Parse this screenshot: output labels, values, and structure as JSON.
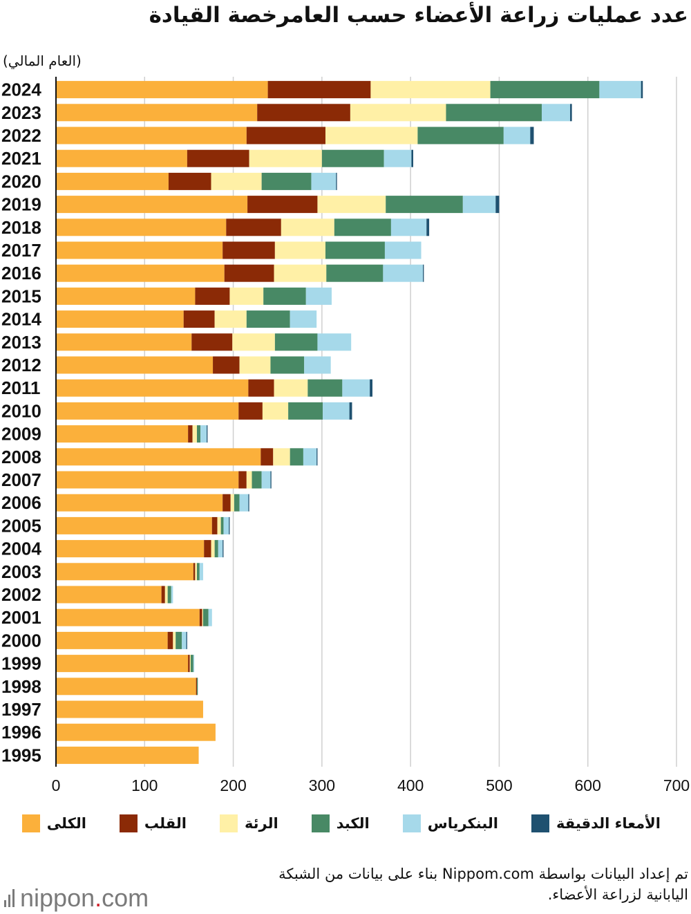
{
  "chart_data": {
    "type": "bar",
    "orientation": "horizontal",
    "stacked": true,
    "title": "عدد عمليات زراعة الأعضاء حسب العامرخصة القيادة",
    "unit_label": "(العام المالي)",
    "categories": [
      "2024",
      "2023",
      "2022",
      "2021",
      "2020",
      "2019",
      "2018",
      "2017",
      "2016",
      "2015",
      "2014",
      "2013",
      "2012",
      "2011",
      "2010",
      "2009",
      "2008",
      "2007",
      "2006",
      "2005",
      "2004",
      "2003",
      "2002",
      "2001",
      "2000",
      "1999",
      "1998",
      "1997",
      "1996",
      "1995"
    ],
    "series": [
      {
        "name": "الكلى",
        "color": "#fbb03b",
        "values": [
          239,
          227,
          215,
          148,
          127,
          216,
          192,
          188,
          190,
          157,
          144,
          153,
          177,
          217,
          206,
          149,
          231,
          206,
          188,
          176,
          167,
          155,
          119,
          162,
          126,
          149,
          158,
          166,
          180,
          161
        ]
      },
      {
        "name": "القلب",
        "color": "#8b2a06",
        "values": [
          116,
          105,
          89,
          70,
          48,
          79,
          62,
          59,
          56,
          39,
          35,
          46,
          30,
          29,
          27,
          5,
          14,
          9,
          9,
          6,
          8,
          2,
          4,
          3,
          6,
          2,
          1,
          0,
          0,
          0
        ]
      },
      {
        "name": "الرئة",
        "color": "#fff0a6",
        "values": [
          135,
          108,
          104,
          82,
          57,
          77,
          60,
          57,
          59,
          38,
          36,
          48,
          35,
          38,
          29,
          5,
          19,
          6,
          4,
          4,
          4,
          2,
          3,
          1,
          3,
          1,
          0,
          0,
          0,
          0
        ]
      },
      {
        "name": "الكبد",
        "color": "#488965",
        "values": [
          123,
          108,
          97,
          70,
          56,
          87,
          64,
          67,
          64,
          48,
          49,
          48,
          38,
          39,
          39,
          4,
          15,
          11,
          6,
          3,
          4,
          3,
          4,
          6,
          7,
          3,
          1,
          0,
          0,
          0
        ]
      },
      {
        "name": "البنكرياس",
        "color": "#a6d9ea",
        "values": [
          47,
          32,
          30,
          31,
          28,
          37,
          40,
          41,
          45,
          29,
          30,
          38,
          30,
          31,
          30,
          7,
          15,
          10,
          10,
          6,
          5,
          4,
          2,
          4,
          5,
          1,
          0,
          0,
          0,
          0
        ]
      },
      {
        "name": "الأمعاء الدقيقة",
        "color": "#1f5170",
        "values": [
          2,
          2,
          4,
          2,
          1,
          4,
          3,
          0,
          1,
          0,
          0,
          0,
          0,
          3,
          3,
          1,
          1,
          1,
          1,
          1,
          1,
          0,
          0,
          0,
          1,
          0,
          0,
          0,
          0,
          0
        ]
      }
    ],
    "xlim": [
      0,
      700
    ],
    "xticks": [
      "0",
      "100",
      "200",
      "300",
      "400",
      "500",
      "600",
      "700"
    ],
    "grid": true,
    "legend_position": "bottom"
  },
  "source": {
    "line1": "تم إعداد البيانات بواسطة Nippom.com بناء على بيانات من الشبكة",
    "line2": "اليابانية لزراعة الأعضاء."
  },
  "logo": {
    "name": "nippon",
    "dot": ".",
    "suffix": "com"
  }
}
